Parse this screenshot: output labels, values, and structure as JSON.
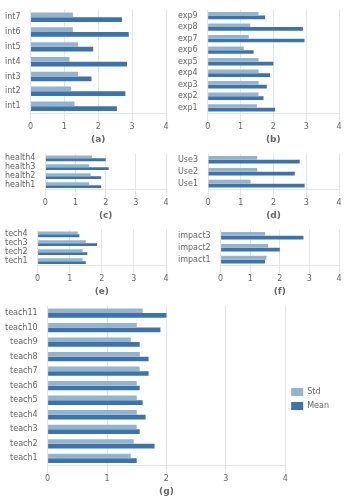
{
  "chart_data": [
    {
      "type": "bar",
      "orientation": "horizontal",
      "x_label": "(a)",
      "categories": [
        "int1",
        "int2",
        "int3",
        "int4",
        "int5",
        "int6",
        "int7"
      ],
      "series": [
        {
          "name": "Std",
          "color": "#92b4cf",
          "values": [
            1.3,
            1.2,
            1.4,
            1.15,
            1.4,
            1.25,
            1.25
          ]
        },
        {
          "name": "Mean",
          "color": "#3d72aa",
          "values": [
            2.55,
            2.8,
            1.8,
            2.85,
            1.85,
            2.9,
            2.7
          ]
        }
      ],
      "xlim": [
        0,
        4
      ],
      "xticks": [
        0,
        1,
        2,
        3,
        4
      ],
      "grid": true
    },
    {
      "type": "bar",
      "orientation": "horizontal",
      "x_label": "(b)",
      "categories": [
        "exp1",
        "exp2",
        "exp3",
        "exp4",
        "exp5",
        "exp6",
        "exp7",
        "exp8",
        "exp9"
      ],
      "series": [
        {
          "name": "Std",
          "color": "#92b4cf",
          "values": [
            1.5,
            1.55,
            1.55,
            1.55,
            1.55,
            1.1,
            1.25,
            1.3,
            1.55
          ]
        },
        {
          "name": "Mean",
          "color": "#3d72aa",
          "values": [
            2.05,
            1.7,
            1.8,
            1.9,
            2.0,
            1.4,
            2.95,
            2.9,
            1.75
          ]
        }
      ],
      "xlim": [
        0,
        4
      ],
      "xticks": [
        0,
        1,
        2,
        3,
        4
      ],
      "grid": true
    },
    {
      "type": "bar",
      "orientation": "horizontal",
      "x_label": "(c)",
      "categories": [
        "health1",
        "health2",
        "health3",
        "health4"
      ],
      "series": [
        {
          "name": "Std",
          "color": "#92b4cf",
          "values": [
            1.45,
            1.5,
            1.45,
            1.55
          ]
        },
        {
          "name": "Mean",
          "color": "#3d72aa",
          "values": [
            1.85,
            1.85,
            2.1,
            2.0
          ]
        }
      ],
      "xlim": [
        0,
        4
      ],
      "xticks": [
        0,
        1,
        2,
        3,
        4
      ],
      "grid": true
    },
    {
      "type": "bar",
      "orientation": "horizontal",
      "x_label": "(d)",
      "categories": [
        "Use1",
        "Use2",
        "Use3"
      ],
      "series": [
        {
          "name": "Std",
          "color": "#92b4cf",
          "values": [
            1.3,
            1.5,
            1.5
          ]
        },
        {
          "name": "Mean",
          "color": "#3d72aa",
          "values": [
            2.95,
            2.65,
            2.8
          ]
        }
      ],
      "xlim": [
        0,
        4
      ],
      "xticks": [
        0,
        1,
        2,
        3,
        4
      ],
      "grid": true
    },
    {
      "type": "bar",
      "orientation": "horizontal",
      "x_label": "(e)",
      "categories": [
        "tech1",
        "tech2",
        "tech3",
        "tech4"
      ],
      "series": [
        {
          "name": "Std",
          "color": "#92b4cf",
          "values": [
            1.4,
            1.4,
            1.5,
            1.25
          ]
        },
        {
          "name": "Mean",
          "color": "#3d72aa",
          "values": [
            1.5,
            1.55,
            1.85,
            1.3
          ]
        }
      ],
      "xlim": [
        0,
        4
      ],
      "xticks": [
        0,
        1,
        2,
        3,
        4
      ],
      "grid": true
    },
    {
      "type": "bar",
      "orientation": "horizontal",
      "x_label": "(f)",
      "categories": [
        "impact1",
        "impact2",
        "impact3"
      ],
      "series": [
        {
          "name": "Std",
          "color": "#92b4cf",
          "values": [
            1.55,
            1.6,
            1.5
          ]
        },
        {
          "name": "Mean",
          "color": "#3d72aa",
          "values": [
            1.5,
            2.0,
            2.8
          ]
        }
      ],
      "xlim": [
        0,
        4
      ],
      "xticks": [
        0,
        1,
        2,
        3,
        4
      ],
      "grid": true
    },
    {
      "type": "bar",
      "orientation": "horizontal",
      "x_label": "(g)",
      "categories": [
        "teach1",
        "teach2",
        "teach3",
        "teach4",
        "teach5",
        "teach6",
        "teach7",
        "teach8",
        "teach9",
        "teach10",
        "teach11"
      ],
      "series": [
        {
          "name": "Std",
          "color": "#92b4cf",
          "values": [
            1.4,
            1.45,
            1.5,
            1.5,
            1.5,
            1.5,
            1.55,
            1.55,
            1.4,
            1.5,
            1.6
          ]
        },
        {
          "name": "Mean",
          "color": "#3d72aa",
          "values": [
            1.5,
            1.8,
            1.55,
            1.65,
            1.6,
            1.55,
            1.7,
            1.7,
            1.55,
            1.9,
            2.0
          ]
        }
      ],
      "xlim": [
        0,
        4
      ],
      "xticks": [
        0,
        1,
        2,
        3,
        4
      ],
      "grid": true,
      "legend": "right"
    }
  ]
}
